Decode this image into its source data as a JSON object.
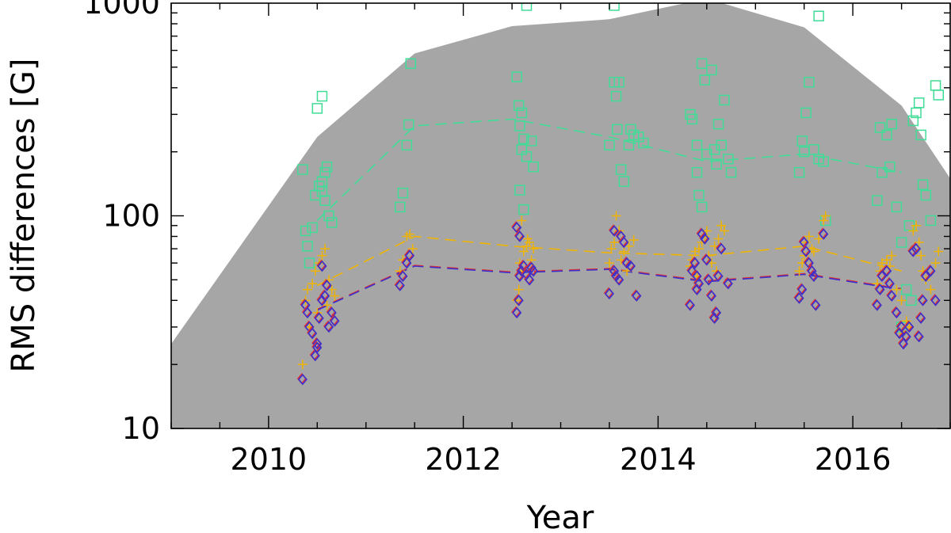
{
  "chart_data": {
    "type": "scatter",
    "title": "",
    "xlabel": "Year",
    "ylabel": "RMS differences [G]",
    "xlim": [
      2009,
      2017
    ],
    "ylim": [
      10,
      1000
    ],
    "yscale": "log",
    "x_ticks": [
      2010,
      2012,
      2014,
      2016
    ],
    "y_ticks": [
      10,
      100,
      1000
    ],
    "grid": false,
    "legend": "none",
    "envelope": {
      "color": "#a6a6a6",
      "x": [
        2009.0,
        2010.5,
        2011.5,
        2012.5,
        2013.5,
        2014.5,
        2015.5,
        2016.5,
        2017.0
      ],
      "y": [
        25,
        235,
        580,
        780,
        840,
        1050,
        770,
        330,
        150
      ]
    },
    "series": [
      {
        "marker": "square",
        "color": "#3fdc96",
        "points": [
          [
            2010.35,
            165
          ],
          [
            2010.38,
            85
          ],
          [
            2010.4,
            72
          ],
          [
            2010.45,
            88
          ],
          [
            2010.52,
            138
          ],
          [
            2010.55,
            130
          ],
          [
            2010.48,
            125
          ],
          [
            2010.58,
            160
          ],
          [
            2010.6,
            170
          ],
          [
            2010.62,
            100
          ],
          [
            2010.65,
            93
          ],
          [
            2010.55,
            145
          ],
          [
            2010.5,
            320
          ],
          [
            2010.55,
            365
          ],
          [
            2010.58,
            118
          ],
          [
            2010.42,
            60
          ],
          [
            2011.35,
            110
          ],
          [
            2011.38,
            128
          ],
          [
            2011.42,
            215
          ],
          [
            2011.44,
            268
          ],
          [
            2011.46,
            520
          ],
          [
            2012.55,
            450
          ],
          [
            2012.57,
            330
          ],
          [
            2012.6,
            305
          ],
          [
            2012.58,
            265
          ],
          [
            2012.62,
            230
          ],
          [
            2012.6,
            205
          ],
          [
            2012.65,
            190
          ],
          [
            2012.7,
            225
          ],
          [
            2012.72,
            170
          ],
          [
            2012.58,
            132
          ],
          [
            2012.62,
            107
          ],
          [
            2012.65,
            975
          ],
          [
            2013.5,
            215
          ],
          [
            2013.55,
            425
          ],
          [
            2013.57,
            365
          ],
          [
            2013.6,
            425
          ],
          [
            2013.58,
            255
          ],
          [
            2013.62,
            165
          ],
          [
            2013.65,
            145
          ],
          [
            2013.7,
            215
          ],
          [
            2013.75,
            240
          ],
          [
            2013.8,
            235
          ],
          [
            2013.85,
            220
          ],
          [
            2013.55,
            975
          ],
          [
            2013.72,
            255
          ],
          [
            2014.33,
            300
          ],
          [
            2014.35,
            285
          ],
          [
            2014.4,
            215
          ],
          [
            2014.42,
            125
          ],
          [
            2014.45,
            110
          ],
          [
            2014.45,
            520
          ],
          [
            2014.48,
            435
          ],
          [
            2014.5,
            195
          ],
          [
            2014.55,
            485
          ],
          [
            2014.58,
            205
          ],
          [
            2014.6,
            175
          ],
          [
            2014.62,
            270
          ],
          [
            2014.65,
            215
          ],
          [
            2014.68,
            350
          ],
          [
            2014.72,
            185
          ],
          [
            2014.75,
            160
          ],
          [
            2014.4,
            160
          ],
          [
            2015.45,
            160
          ],
          [
            2015.48,
            225
          ],
          [
            2015.5,
            200
          ],
          [
            2015.52,
            305
          ],
          [
            2015.55,
            425
          ],
          [
            2015.6,
            205
          ],
          [
            2015.65,
            185
          ],
          [
            2015.7,
            180
          ],
          [
            2015.72,
            95
          ],
          [
            2015.65,
            870
          ],
          [
            2016.25,
            118
          ],
          [
            2016.28,
            260
          ],
          [
            2016.3,
            160
          ],
          [
            2016.35,
            240
          ],
          [
            2016.38,
            170
          ],
          [
            2016.4,
            270
          ],
          [
            2016.45,
            110
          ],
          [
            2016.5,
            75
          ],
          [
            2016.55,
            45
          ],
          [
            2016.6,
            40
          ],
          [
            2016.62,
            280
          ],
          [
            2016.65,
            305
          ],
          [
            2016.68,
            340
          ],
          [
            2016.7,
            240
          ],
          [
            2016.72,
            140
          ],
          [
            2016.75,
            125
          ],
          [
            2016.8,
            95
          ],
          [
            2016.85,
            410
          ],
          [
            2016.88,
            370
          ],
          [
            2016.5,
            30
          ],
          [
            2016.58,
            90
          ]
        ],
        "trend": {
          "x": [
            2010.5,
            2011.5,
            2012.5,
            2013.5,
            2014.5,
            2015.5,
            2016.5
          ],
          "y": [
            95,
            265,
            285,
            235,
            180,
            195,
            160
          ]
        }
      },
      {
        "marker": "plus",
        "color": "#f0b400",
        "points": [
          [
            2010.35,
            20
          ],
          [
            2010.38,
            40
          ],
          [
            2010.4,
            45
          ],
          [
            2010.45,
            48
          ],
          [
            2010.48,
            55
          ],
          [
            2010.52,
            60
          ],
          [
            2010.55,
            65
          ],
          [
            2010.58,
            70
          ],
          [
            2010.5,
            35
          ],
          [
            2010.42,
            30
          ],
          [
            2010.62,
            50
          ],
          [
            2010.65,
            45
          ],
          [
            2010.6,
            38
          ],
          [
            2010.68,
            42
          ],
          [
            2011.35,
            55
          ],
          [
            2011.38,
            62
          ],
          [
            2011.42,
            80
          ],
          [
            2011.45,
            82
          ],
          [
            2011.48,
            70
          ],
          [
            2012.55,
            40
          ],
          [
            2012.57,
            45
          ],
          [
            2012.6,
            55
          ],
          [
            2012.58,
            60
          ],
          [
            2012.62,
            68
          ],
          [
            2012.65,
            72
          ],
          [
            2012.68,
            75
          ],
          [
            2012.7,
            62
          ],
          [
            2012.72,
            70
          ],
          [
            2012.6,
            95
          ],
          [
            2012.66,
            78
          ],
          [
            2013.5,
            60
          ],
          [
            2013.52,
            70
          ],
          [
            2013.55,
            75
          ],
          [
            2013.57,
            100
          ],
          [
            2013.6,
            85
          ],
          [
            2013.62,
            62
          ],
          [
            2013.65,
            68
          ],
          [
            2013.7,
            72
          ],
          [
            2013.75,
            77
          ],
          [
            2013.68,
            55
          ],
          [
            2014.33,
            58
          ],
          [
            2014.35,
            62
          ],
          [
            2014.38,
            68
          ],
          [
            2014.42,
            70
          ],
          [
            2014.45,
            75
          ],
          [
            2014.48,
            80
          ],
          [
            2014.5,
            85
          ],
          [
            2014.52,
            65
          ],
          [
            2014.55,
            60
          ],
          [
            2014.58,
            72
          ],
          [
            2014.62,
            78
          ],
          [
            2014.65,
            90
          ],
          [
            2014.68,
            85
          ],
          [
            2014.6,
            55
          ],
          [
            2014.4,
            52
          ],
          [
            2015.45,
            55
          ],
          [
            2015.48,
            60
          ],
          [
            2015.5,
            65
          ],
          [
            2015.52,
            75
          ],
          [
            2015.55,
            80
          ],
          [
            2015.58,
            70
          ],
          [
            2015.6,
            68
          ],
          [
            2015.65,
            78
          ],
          [
            2015.7,
            95
          ],
          [
            2015.72,
            100
          ],
          [
            2016.25,
            48
          ],
          [
            2016.28,
            55
          ],
          [
            2016.3,
            60
          ],
          [
            2016.35,
            62
          ],
          [
            2016.38,
            58
          ],
          [
            2016.4,
            65
          ],
          [
            2016.45,
            45
          ],
          [
            2016.5,
            40
          ],
          [
            2016.55,
            32
          ],
          [
            2016.58,
            30
          ],
          [
            2016.62,
            85
          ],
          [
            2016.65,
            90
          ],
          [
            2016.68,
            75
          ],
          [
            2016.7,
            65
          ],
          [
            2016.72,
            55
          ],
          [
            2016.75,
            50
          ],
          [
            2016.8,
            45
          ],
          [
            2016.85,
            60
          ],
          [
            2016.88,
            68
          ],
          [
            2016.52,
            28
          ]
        ],
        "trend": {
          "x": [
            2010.5,
            2011.5,
            2012.5,
            2013.5,
            2014.5,
            2015.5,
            2016.5
          ],
          "y": [
            47,
            80,
            72,
            67,
            65,
            72,
            55
          ]
        }
      },
      {
        "marker": "diamond",
        "color": "#3a2fd0",
        "edge": "#e03030",
        "points": [
          [
            2010.35,
            17
          ],
          [
            2010.38,
            38
          ],
          [
            2010.4,
            35
          ],
          [
            2010.42,
            30
          ],
          [
            2010.45,
            28
          ],
          [
            2010.48,
            22
          ],
          [
            2010.5,
            25
          ],
          [
            2010.52,
            33
          ],
          [
            2010.55,
            40
          ],
          [
            2010.58,
            42
          ],
          [
            2010.6,
            47
          ],
          [
            2010.62,
            30
          ],
          [
            2010.65,
            35
          ],
          [
            2010.68,
            32
          ],
          [
            2010.55,
            58
          ],
          [
            2010.5,
            24
          ],
          [
            2011.35,
            47
          ],
          [
            2011.38,
            52
          ],
          [
            2011.42,
            60
          ],
          [
            2011.45,
            65
          ],
          [
            2012.55,
            35
          ],
          [
            2012.57,
            40
          ],
          [
            2012.58,
            52
          ],
          [
            2012.6,
            55
          ],
          [
            2012.62,
            58
          ],
          [
            2012.65,
            53
          ],
          [
            2012.68,
            50
          ],
          [
            2012.7,
            57
          ],
          [
            2012.72,
            55
          ],
          [
            2012.55,
            88
          ],
          [
            2012.58,
            80
          ],
          [
            2013.5,
            43
          ],
          [
            2013.55,
            55
          ],
          [
            2013.57,
            52
          ],
          [
            2013.6,
            50
          ],
          [
            2013.62,
            80
          ],
          [
            2013.65,
            75
          ],
          [
            2013.68,
            60
          ],
          [
            2013.72,
            58
          ],
          [
            2013.78,
            42
          ],
          [
            2013.55,
            85
          ],
          [
            2014.33,
            38
          ],
          [
            2014.35,
            55
          ],
          [
            2014.38,
            60
          ],
          [
            2014.4,
            52
          ],
          [
            2014.42,
            48
          ],
          [
            2014.45,
            82
          ],
          [
            2014.48,
            78
          ],
          [
            2014.5,
            62
          ],
          [
            2014.52,
            50
          ],
          [
            2014.55,
            42
          ],
          [
            2014.58,
            33
          ],
          [
            2014.6,
            35
          ],
          [
            2014.62,
            52
          ],
          [
            2014.65,
            70
          ],
          [
            2014.72,
            48
          ],
          [
            2014.4,
            45
          ],
          [
            2015.45,
            41
          ],
          [
            2015.48,
            45
          ],
          [
            2015.5,
            75
          ],
          [
            2015.52,
            68
          ],
          [
            2015.55,
            60
          ],
          [
            2015.58,
            55
          ],
          [
            2015.6,
            52
          ],
          [
            2015.62,
            38
          ],
          [
            2015.7,
            82
          ],
          [
            2016.25,
            38
          ],
          [
            2016.28,
            45
          ],
          [
            2016.3,
            52
          ],
          [
            2016.35,
            55
          ],
          [
            2016.38,
            48
          ],
          [
            2016.4,
            42
          ],
          [
            2016.45,
            35
          ],
          [
            2016.5,
            30
          ],
          [
            2016.52,
            25
          ],
          [
            2016.55,
            27
          ],
          [
            2016.58,
            30
          ],
          [
            2016.62,
            68
          ],
          [
            2016.65,
            70
          ],
          [
            2016.68,
            27
          ],
          [
            2016.7,
            33
          ],
          [
            2016.72,
            40
          ],
          [
            2016.75,
            52
          ],
          [
            2016.8,
            55
          ],
          [
            2016.85,
            40
          ],
          [
            2016.48,
            28
          ]
        ],
        "trend": {
          "x": [
            2010.5,
            2011.5,
            2012.5,
            2013.5,
            2014.5,
            2015.5,
            2016.5
          ],
          "y": [
            36,
            58,
            54,
            56,
            49,
            53,
            45
          ]
        }
      }
    ]
  }
}
